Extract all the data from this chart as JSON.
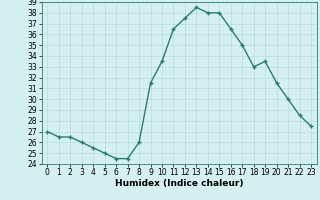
{
  "title": "",
  "xlabel": "Humidex (Indice chaleur)",
  "ylabel": "",
  "x": [
    0,
    1,
    2,
    3,
    4,
    5,
    6,
    7,
    8,
    9,
    10,
    11,
    12,
    13,
    14,
    15,
    16,
    17,
    18,
    19,
    20,
    21,
    22,
    23
  ],
  "y": [
    27,
    26.5,
    26.5,
    26,
    25.5,
    25,
    24.5,
    24.5,
    26,
    31.5,
    33.5,
    36.5,
    37.5,
    38.5,
    38,
    38,
    36.5,
    35,
    33,
    33.5,
    31.5,
    30,
    28.5,
    27.5
  ],
  "line_color": "#2d7d6e",
  "marker": "+",
  "background_color": "#d4f0f0",
  "grid_color": "#b0dada",
  "ylim": [
    24,
    39
  ],
  "xlim": [
    -0.5,
    23.5
  ],
  "yticks": [
    24,
    25,
    26,
    27,
    28,
    29,
    30,
    31,
    32,
    33,
    34,
    35,
    36,
    37,
    38,
    39
  ],
  "xticks": [
    0,
    1,
    2,
    3,
    4,
    5,
    6,
    7,
    8,
    9,
    10,
    11,
    12,
    13,
    14,
    15,
    16,
    17,
    18,
    19,
    20,
    21,
    22,
    23
  ],
  "tick_fontsize": 5.5,
  "xlabel_fontsize": 6.5,
  "line_width": 1.0,
  "marker_size": 3,
  "marker_edge_width": 1.0
}
